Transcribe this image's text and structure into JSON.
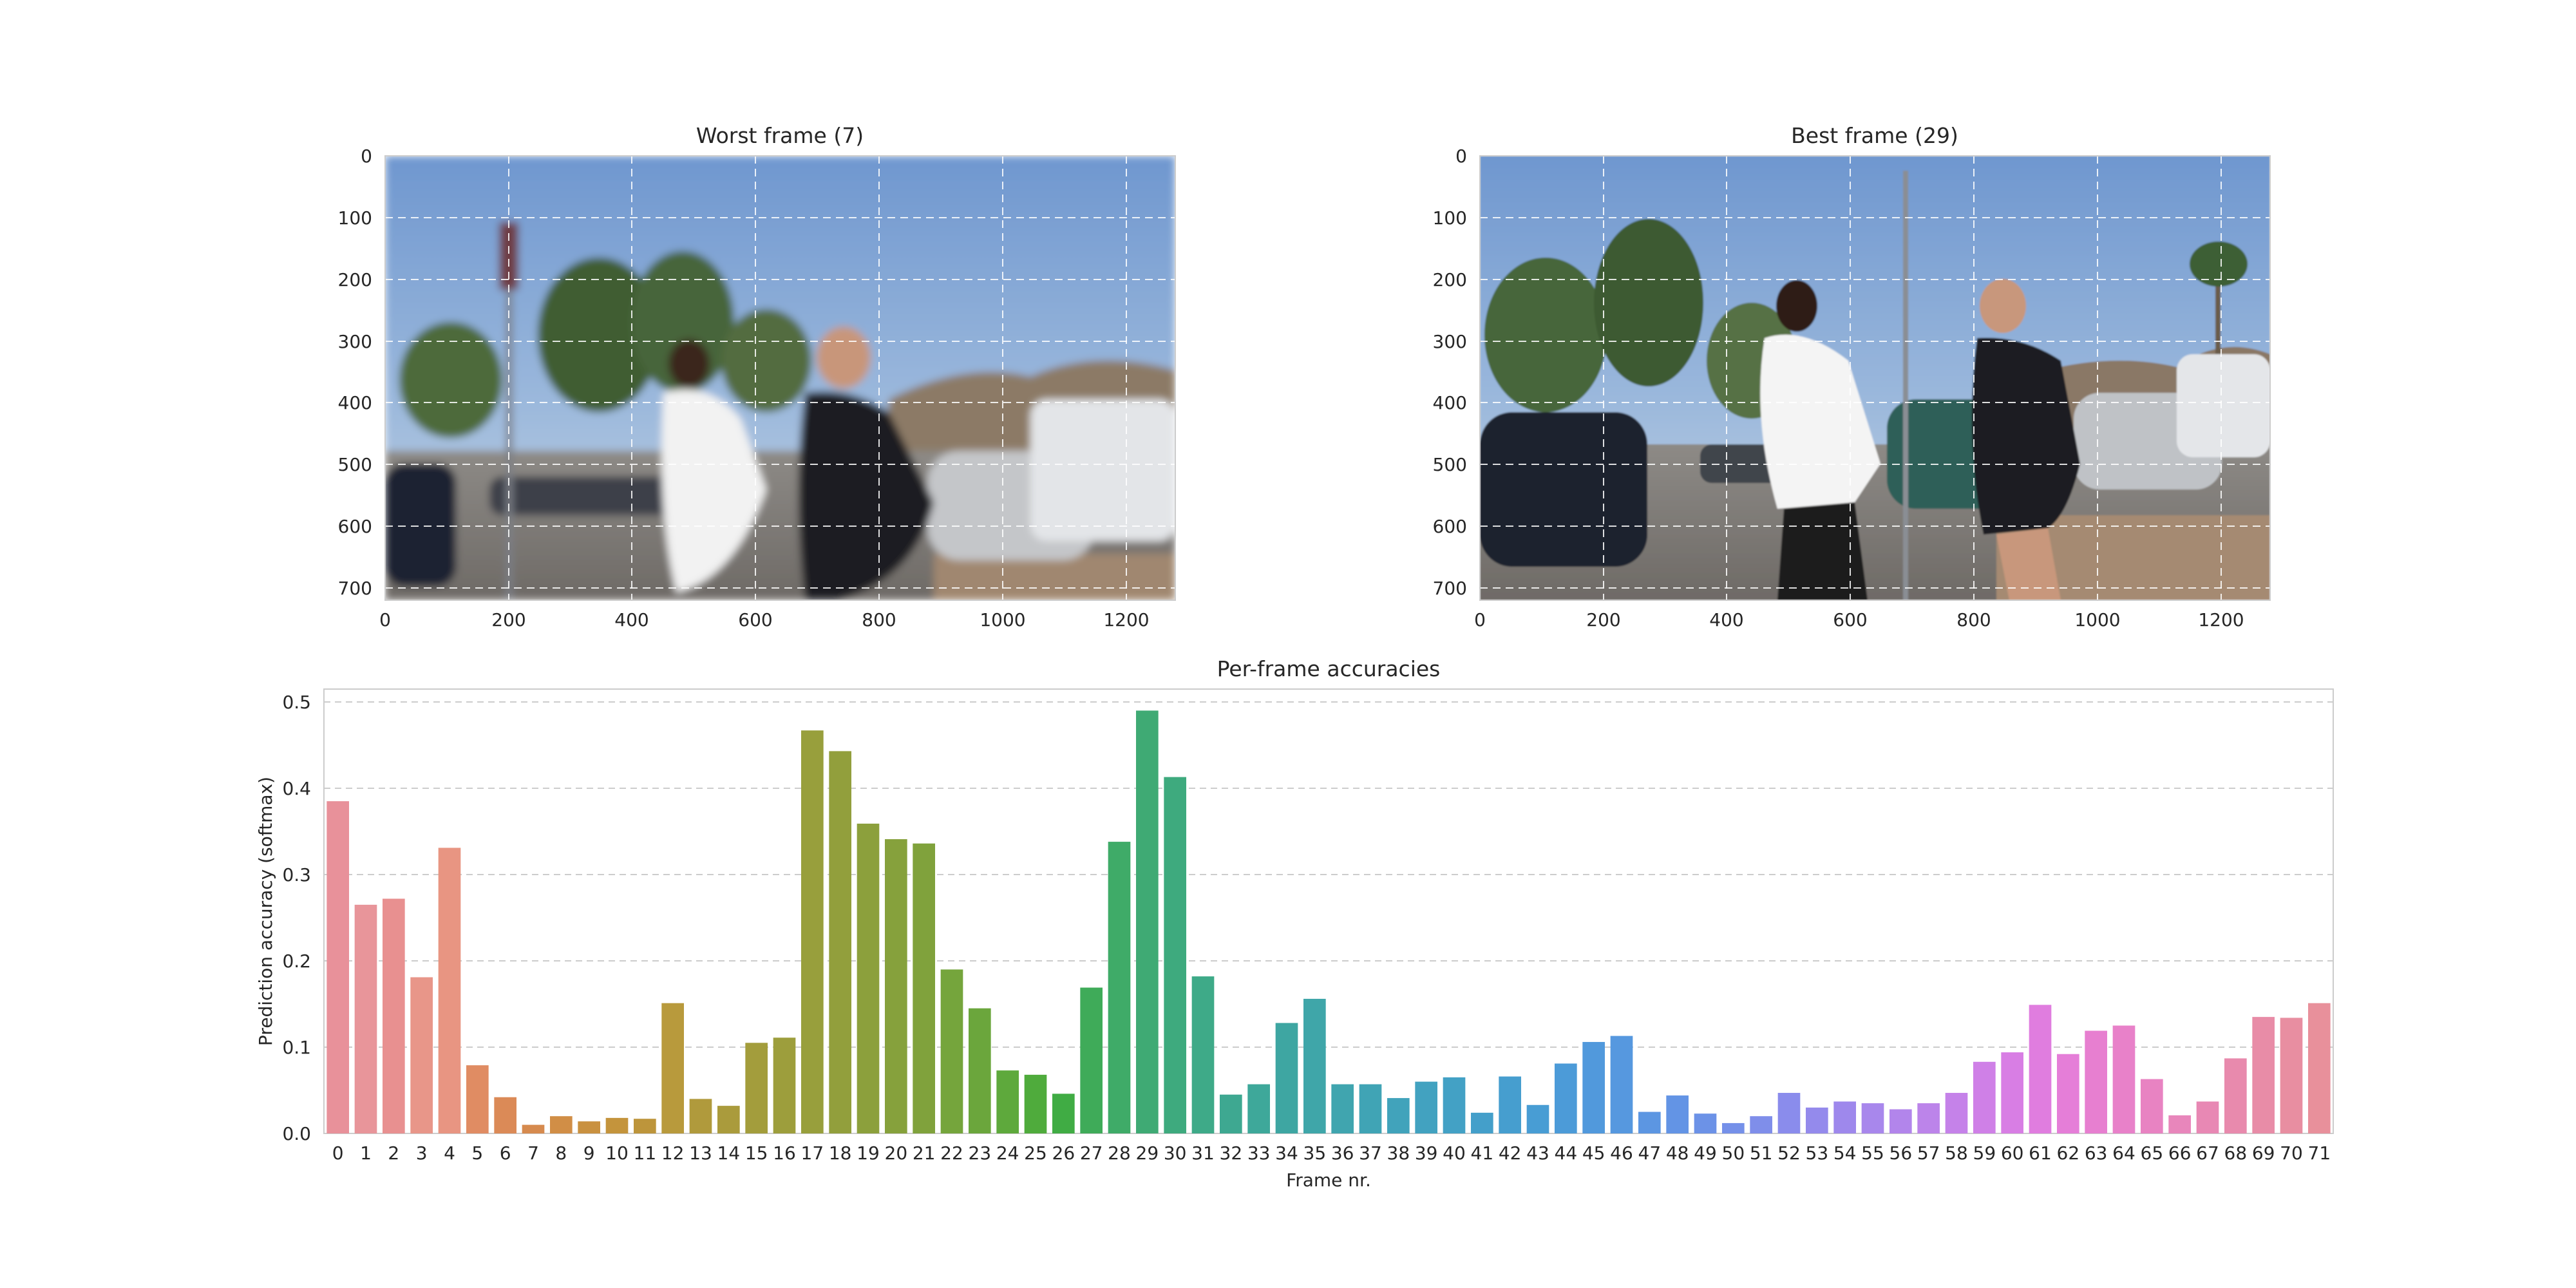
{
  "chart_data": [
    {
      "type": "image",
      "title": "Worst frame (7)",
      "xticks": [
        "0",
        "200",
        "400",
        "600",
        "800",
        "1000",
        "1200"
      ],
      "yticks": [
        "0",
        "100",
        "200",
        "300",
        "400",
        "500",
        "600",
        "700"
      ],
      "xlim": [
        0,
        1280
      ],
      "ylim": [
        720,
        0
      ],
      "grid": true,
      "scene": "two people jogging in a parking lot, motion-blurred, street sign pole on left"
    },
    {
      "type": "image",
      "title": "Best frame (29)",
      "xticks": [
        "0",
        "200",
        "400",
        "600",
        "800",
        "1000",
        "1200"
      ],
      "yticks": [
        "0",
        "100",
        "200",
        "300",
        "400",
        "500",
        "600",
        "700"
      ],
      "xlim": [
        0,
        1280
      ],
      "ylim": [
        720,
        0
      ],
      "grid": true,
      "scene": "two people jogging in a parking lot, in focus"
    },
    {
      "type": "bar",
      "title": "Per-frame accuracies",
      "xlabel": "Frame nr.",
      "ylabel": "Prediction accuracy (softmax)",
      "ylim": [
        0,
        0.5
      ],
      "yticks": [
        "0.0",
        "0.1",
        "0.2",
        "0.3",
        "0.4",
        "0.5"
      ],
      "grid": true,
      "categories": [
        "0",
        "1",
        "2",
        "3",
        "4",
        "5",
        "6",
        "7",
        "8",
        "9",
        "10",
        "11",
        "12",
        "13",
        "14",
        "15",
        "16",
        "17",
        "18",
        "19",
        "20",
        "21",
        "22",
        "23",
        "24",
        "25",
        "26",
        "27",
        "28",
        "29",
        "30",
        "31",
        "32",
        "33",
        "34",
        "35",
        "36",
        "37",
        "38",
        "39",
        "40",
        "41",
        "42",
        "43",
        "44",
        "45",
        "46",
        "47",
        "48",
        "49",
        "50",
        "51",
        "52",
        "53",
        "54",
        "55",
        "56",
        "57",
        "58",
        "59",
        "60",
        "61",
        "62",
        "63",
        "64",
        "65",
        "66",
        "67",
        "68",
        "69",
        "70",
        "71"
      ],
      "values": [
        0.385,
        0.265,
        0.272,
        0.181,
        0.331,
        0.079,
        0.042,
        0.01,
        0.02,
        0.014,
        0.018,
        0.017,
        0.151,
        0.04,
        0.032,
        0.105,
        0.111,
        0.467,
        0.443,
        0.359,
        0.341,
        0.336,
        0.19,
        0.145,
        0.073,
        0.068,
        0.046,
        0.169,
        0.338,
        0.49,
        0.413,
        0.182,
        0.045,
        0.057,
        0.128,
        0.156,
        0.057,
        0.057,
        0.041,
        0.06,
        0.065,
        0.024,
        0.066,
        0.033,
        0.081,
        0.106,
        0.113,
        0.025,
        0.044,
        0.023,
        0.012,
        0.02,
        0.047,
        0.03,
        0.037,
        0.035,
        0.028,
        0.035,
        0.047,
        0.083,
        0.094,
        0.149,
        0.092,
        0.119,
        0.125,
        0.063,
        0.021,
        0.037,
        0.087,
        0.135,
        0.134,
        0.151
      ],
      "colors": [
        "#e8919a",
        "#e8959a",
        "#e89090",
        "#e89689",
        "#e89582",
        "#e08c63",
        "#db8a57",
        "#d68a4e",
        "#d18e46",
        "#c99140",
        "#c4943c",
        "#bd953b",
        "#b89a3c",
        "#b09a3c",
        "#aa9b3c",
        "#a39d3c",
        "#9d9e3c",
        "#989f3c",
        "#929f3c",
        "#8ca03c",
        "#86a13c",
        "#80a23c",
        "#75a53c",
        "#6ba63c",
        "#5ea93c",
        "#4fab3c",
        "#40ac44",
        "#3fab59",
        "#3fab68",
        "#3faa74",
        "#3eaa7e",
        "#3eaa88",
        "#3ea891",
        "#3ea89a",
        "#3ea6a2",
        "#3fa6a9",
        "#40a5af",
        "#40a4b5",
        "#41a3bb",
        "#42a2c0",
        "#43a1c5",
        "#449fca",
        "#469ecf",
        "#489dd4",
        "#4c9bd8",
        "#5199dc",
        "#5698df",
        "#5c96e2",
        "#6394e5",
        "#6c92e7",
        "#7590e9",
        "#7f8eea",
        "#8a8cec",
        "#948aec",
        "#9e88ec",
        "#a887ec",
        "#b285eb",
        "#bc84ea",
        "#c582e9",
        "#cf80e7",
        "#d87ee4",
        "#e07ddf",
        "#e57ed8",
        "#e77fd0",
        "#e881c9",
        "#e883c2",
        "#e886bb",
        "#e888b4",
        "#e88aad",
        "#e88ca7",
        "#e88ea1",
        "#e8909b"
      ]
    }
  ]
}
